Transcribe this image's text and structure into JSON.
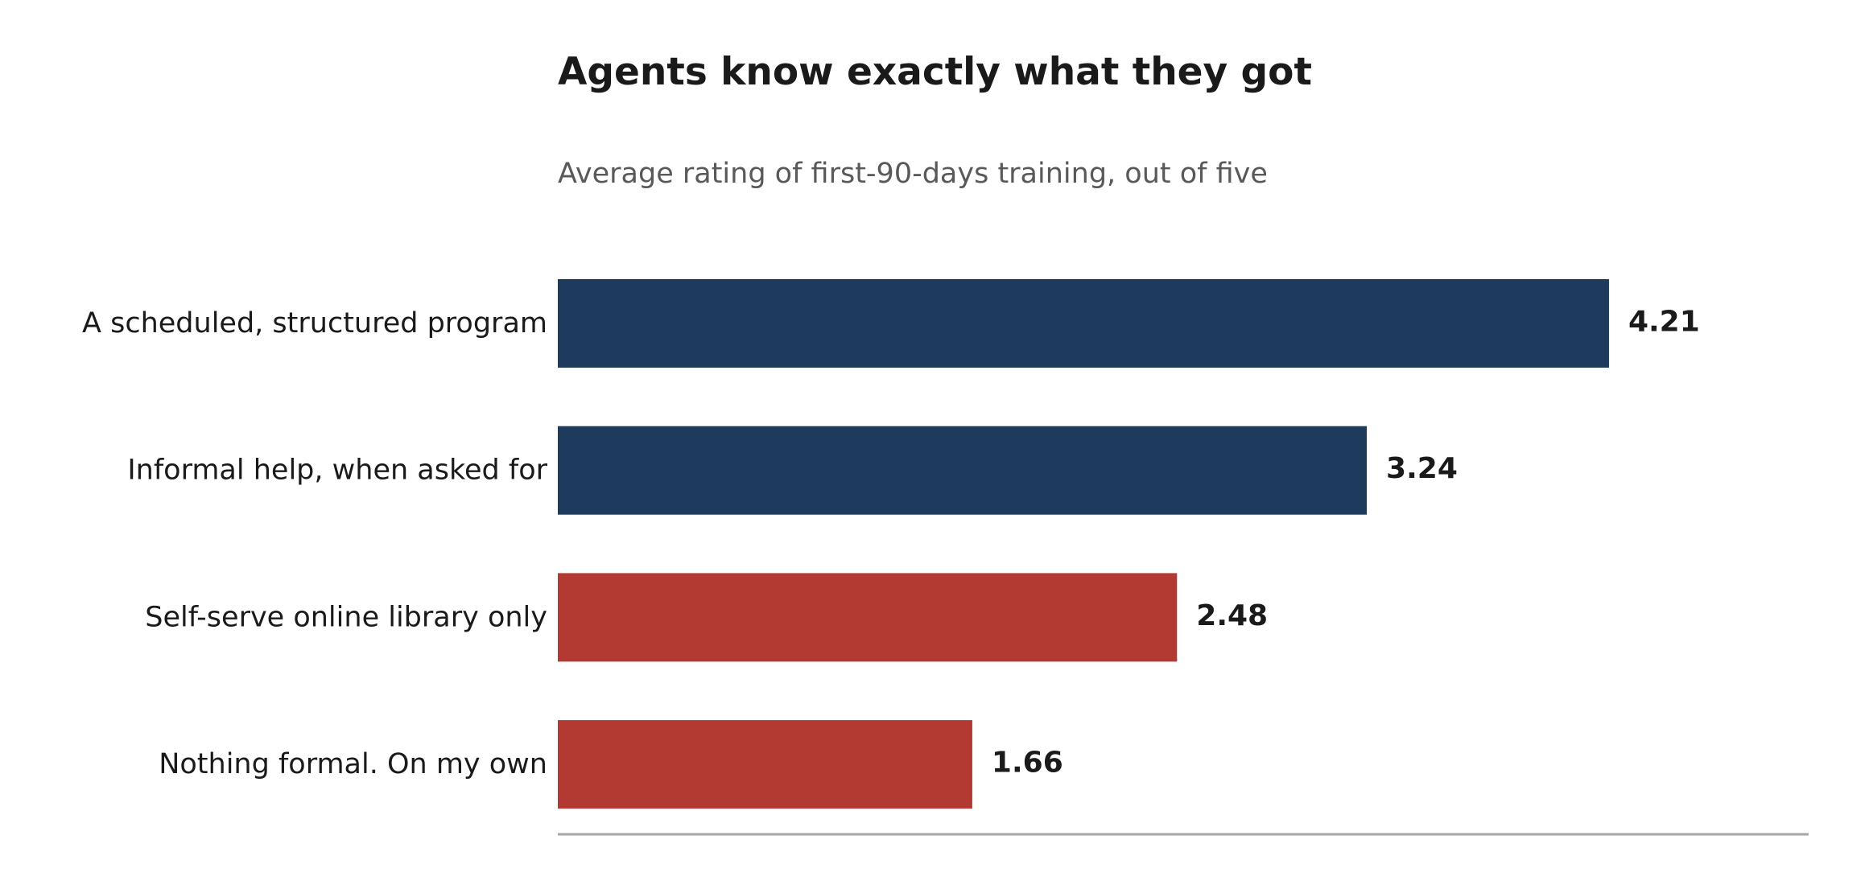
{
  "chart_data": {
    "type": "bar",
    "orientation": "horizontal",
    "title": "Agents know exactly what they got",
    "subtitle": "Average rating of first-90-days training, out of five",
    "xlabel": "",
    "ylabel": "",
    "xlim": [
      0,
      5
    ],
    "grid": false,
    "legend": "none",
    "categories": [
      "A scheduled, structured program",
      "Informal help, when asked for",
      "Self-serve online library only",
      "Nothing formal. On my own"
    ],
    "values": [
      4.21,
      3.24,
      2.48,
      1.66
    ],
    "value_labels": [
      "4.21",
      "3.24",
      "2.48",
      "1.66"
    ],
    "bar_colors": [
      "#1e3a5c",
      "#1e3a5c",
      "#b23a32",
      "#b23a32"
    ],
    "axis_color": "#a6a6a6"
  }
}
